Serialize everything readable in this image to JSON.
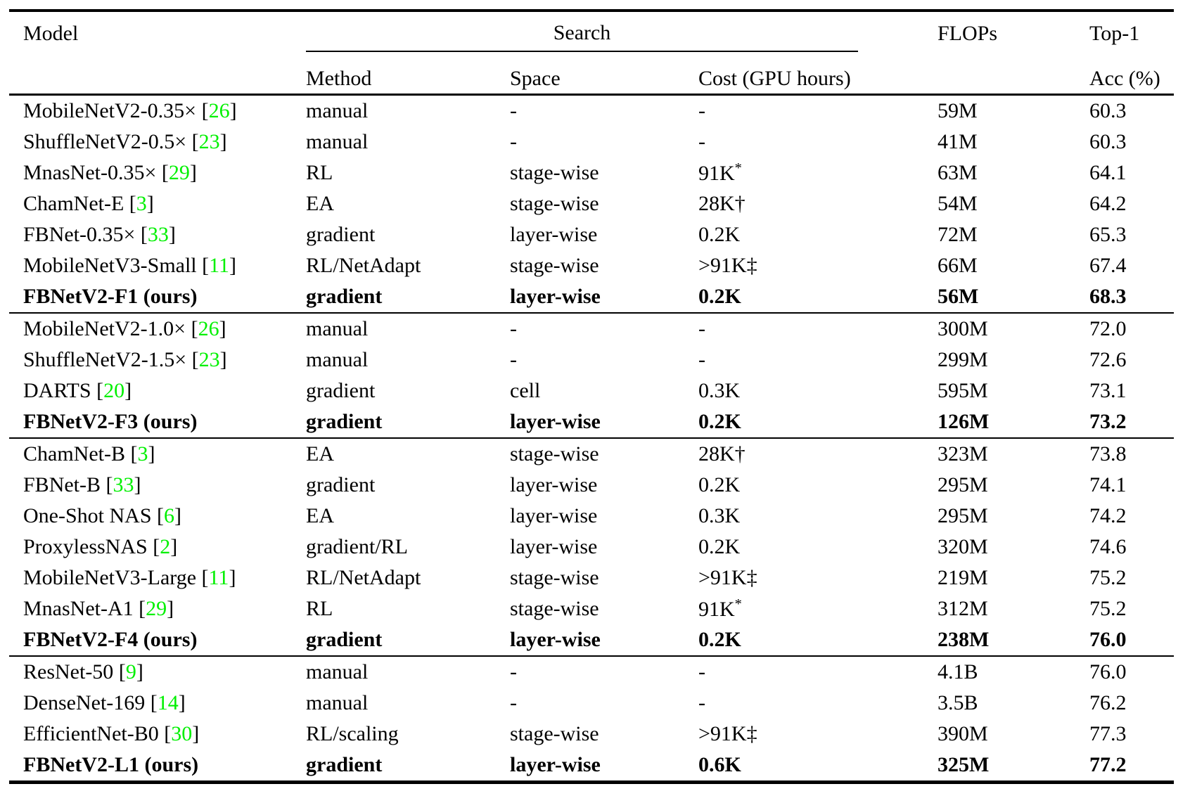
{
  "colors": {
    "background": "#FFFFFF",
    "text": "#000000",
    "rules": "#000000",
    "citation_green": "#00F000"
  },
  "header": {
    "model_label": "Model",
    "search_label": "Search",
    "method_label": "Method",
    "space_label": "Space",
    "cost_label": "Cost (GPU hours)",
    "flops_label": "FLOPs",
    "top1_label_line1": "Top-1",
    "top1_label_line2": "Acc (%)"
  },
  "table": {
    "groups": [
      {
        "rows": [
          {
            "model": "MobileNetV2-0.35×",
            "ref": "26",
            "method": "manual",
            "space": "-",
            "cost": "-",
            "flops": "59M",
            "acc": "60.3",
            "bold": false
          },
          {
            "model": "ShuffleNetV2-0.5×",
            "ref": "23",
            "method": "manual",
            "space": "-",
            "cost": "-",
            "flops": "41M",
            "acc": "60.3",
            "bold": false
          },
          {
            "model": "MnasNet-0.35×",
            "ref": "29",
            "method": "RL",
            "space": "stage-wise",
            "cost": "91K",
            "cost_sup": "*",
            "flops": "63M",
            "acc": "64.1",
            "bold": false
          },
          {
            "model": "ChamNet-E",
            "ref": "3",
            "method": "EA",
            "space": "stage-wise",
            "cost": "28K†",
            "flops": "54M",
            "acc": "64.2",
            "bold": false
          },
          {
            "model": "FBNet-0.35×",
            "ref": "33",
            "method": "gradient",
            "space": "layer-wise",
            "cost": "0.2K",
            "flops": "72M",
            "acc": "65.3",
            "bold": false
          },
          {
            "model": "MobileNetV3-Small",
            "ref": "11",
            "method": "RL/NetAdapt",
            "space": "stage-wise",
            "cost": ">91K‡",
            "flops": "66M",
            "acc": "67.4",
            "bold": false
          },
          {
            "model": "FBNetV2-F1 (ours)",
            "ref": null,
            "method": "gradient",
            "space": "layer-wise",
            "cost": "0.2K",
            "flops": "56M",
            "acc": "68.3",
            "bold": true
          }
        ]
      },
      {
        "rows": [
          {
            "model": "MobileNetV2-1.0×",
            "ref": "26",
            "method": "manual",
            "space": "-",
            "cost": "-",
            "flops": "300M",
            "acc": "72.0",
            "bold": false
          },
          {
            "model": "ShuffleNetV2-1.5×",
            "ref": "23",
            "method": "manual",
            "space": "-",
            "cost": "-",
            "flops": "299M",
            "acc": "72.6",
            "bold": false
          },
          {
            "model": "DARTS",
            "ref": "20",
            "method": "gradient",
            "space": "cell",
            "cost": "0.3K",
            "flops": "595M",
            "acc": "73.1",
            "bold": false
          },
          {
            "model": "FBNetV2-F3 (ours)",
            "ref": null,
            "method": "gradient",
            "space": "layer-wise",
            "cost": "0.2K",
            "flops": "126M",
            "acc": "73.2",
            "bold": true
          }
        ]
      },
      {
        "rows": [
          {
            "model": "ChamNet-B",
            "ref": "3",
            "method": "EA",
            "space": "stage-wise",
            "cost": "28K†",
            "flops": "323M",
            "acc": "73.8",
            "bold": false
          },
          {
            "model": "FBNet-B",
            "ref": "33",
            "method": "gradient",
            "space": "layer-wise",
            "cost": "0.2K",
            "flops": "295M",
            "acc": "74.1",
            "bold": false
          },
          {
            "model": "One-Shot NAS",
            "ref": "6",
            "method": "EA",
            "space": "layer-wise",
            "cost": "0.3K",
            "flops": "295M",
            "acc": "74.2",
            "bold": false
          },
          {
            "model": "ProxylessNAS",
            "ref": "2",
            "method": "gradient/RL",
            "space": "layer-wise",
            "cost": "0.2K",
            "flops": "320M",
            "acc": "74.6",
            "bold": false
          },
          {
            "model": "MobileNetV3-Large",
            "ref": "11",
            "method": "RL/NetAdapt",
            "space": "stage-wise",
            "cost": ">91K‡",
            "flops": "219M",
            "acc": "75.2",
            "bold": false
          },
          {
            "model": "MnasNet-A1",
            "ref": "29",
            "method": "RL",
            "space": "stage-wise",
            "cost": "91K",
            "cost_sup": "*",
            "flops": "312M",
            "acc": "75.2",
            "bold": false
          },
          {
            "model": "FBNetV2-F4 (ours)",
            "ref": null,
            "method": "gradient",
            "space": "layer-wise",
            "cost": "0.2K",
            "flops": "238M",
            "acc": "76.0",
            "bold": true
          }
        ]
      },
      {
        "rows": [
          {
            "model": "ResNet-50",
            "ref": "9",
            "method": "manual",
            "space": "-",
            "cost": "-",
            "flops": "4.1B",
            "acc": "76.0",
            "bold": false
          },
          {
            "model": "DenseNet-169",
            "ref": "14",
            "method": "manual",
            "space": "-",
            "cost": "-",
            "flops": "3.5B",
            "acc": "76.2",
            "bold": false
          },
          {
            "model": "EfficientNet-B0",
            "ref": "30",
            "method": "RL/scaling",
            "space": "stage-wise",
            "cost": ">91K‡",
            "flops": "390M",
            "acc": "77.3",
            "bold": false
          },
          {
            "model": "FBNetV2-L1 (ours)",
            "ref": null,
            "method": "gradient",
            "space": "layer-wise",
            "cost": "0.6K",
            "flops": "325M",
            "acc": "77.2",
            "bold": true
          }
        ]
      }
    ]
  }
}
